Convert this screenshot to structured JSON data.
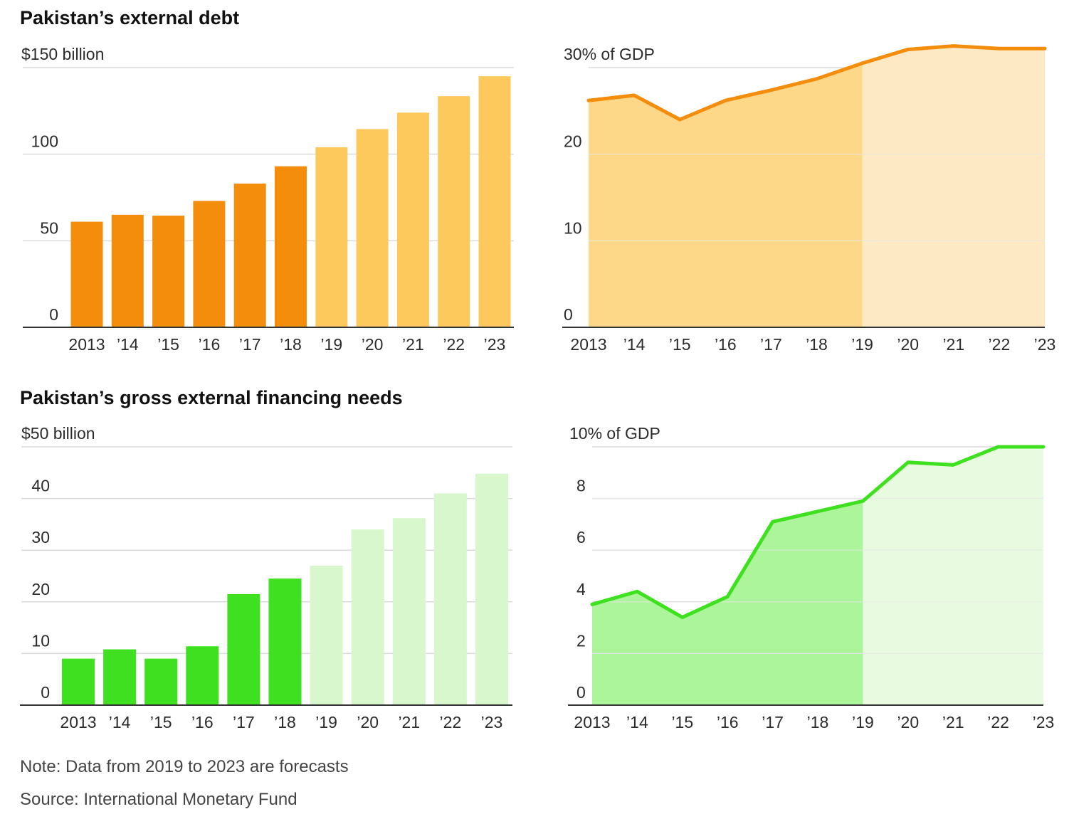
{
  "sections": [
    {
      "title": "Pakistan’s external debt"
    },
    {
      "title": "Pakistan’s gross external financing needs"
    }
  ],
  "footer": {
    "note": "Note: Data from 2019 to 2023 are forecasts",
    "source": "Source: International Monetary Fund"
  },
  "chart_data": [
    {
      "type": "bar",
      "categories": [
        "2013",
        "’14",
        "’15",
        "’16",
        "’17",
        "’18",
        "’19",
        "’20",
        "’21",
        "’22",
        "’23"
      ],
      "values": [
        61,
        65,
        64.5,
        73,
        83,
        93,
        104,
        114.5,
        124,
        133.5,
        145
      ],
      "forecast_from_index": 6,
      "ylim": [
        0,
        150
      ],
      "yticks": [
        0,
        50,
        100,
        150
      ],
      "ytick_labels": [
        "0",
        "50",
        "100",
        "$150 billion"
      ],
      "colors": {
        "actual": "#f48c0c",
        "forecast": "#fdc85c"
      },
      "grid": true
    },
    {
      "type": "area",
      "categories": [
        "2013",
        "’14",
        "’15",
        "’16",
        "’17",
        "’18",
        "’19",
        "’20",
        "’21",
        "’22",
        "’23"
      ],
      "values": [
        26.2,
        26.8,
        24.0,
        26.2,
        27.4,
        28.7,
        30.5,
        32.1,
        32.5,
        32.2,
        32.2
      ],
      "forecast_from_index": 6,
      "ylim": [
        0,
        30
      ],
      "yticks": [
        0,
        10,
        20,
        30
      ],
      "ytick_labels": [
        "0",
        "10",
        "20",
        "30% of GDP"
      ],
      "colors": {
        "line": "#f48c0c",
        "actual_fill": "#fdd888",
        "forecast_fill": "#fde9c4"
      },
      "grid": true
    },
    {
      "type": "bar",
      "categories": [
        "2013",
        "’14",
        "’15",
        "’16",
        "’17",
        "’18",
        "’19",
        "’20",
        "’21",
        "’22",
        "’23"
      ],
      "values": [
        9,
        10.8,
        9,
        11.4,
        21.5,
        24.5,
        27,
        34,
        36.2,
        41,
        44.8
      ],
      "forecast_from_index": 6,
      "ylim": [
        0,
        50
      ],
      "yticks": [
        0,
        10,
        20,
        30,
        40,
        50
      ],
      "ytick_labels": [
        "0",
        "10",
        "20",
        "30",
        "40",
        "$50 billion"
      ],
      "colors": {
        "actual": "#3ee01f",
        "forecast": "#d9f7cc"
      },
      "grid": true
    },
    {
      "type": "area",
      "categories": [
        "2013",
        "’14",
        "’15",
        "’16",
        "’17",
        "’18",
        "’19",
        "’20",
        "’21",
        "’22",
        "’23"
      ],
      "values": [
        3.9,
        4.4,
        3.4,
        4.2,
        7.1,
        7.5,
        7.9,
        9.4,
        9.3,
        10.0,
        10.0
      ],
      "forecast_from_index": 6,
      "ylim": [
        0,
        10
      ],
      "yticks": [
        0,
        2,
        4,
        6,
        8,
        10
      ],
      "ytick_labels": [
        "0",
        "2",
        "4",
        "6",
        "8",
        "10% of GDP"
      ],
      "colors": {
        "line": "#3ee01f",
        "actual_fill": "#acf59a",
        "forecast_fill": "#e8fbe0"
      },
      "grid": true
    }
  ]
}
